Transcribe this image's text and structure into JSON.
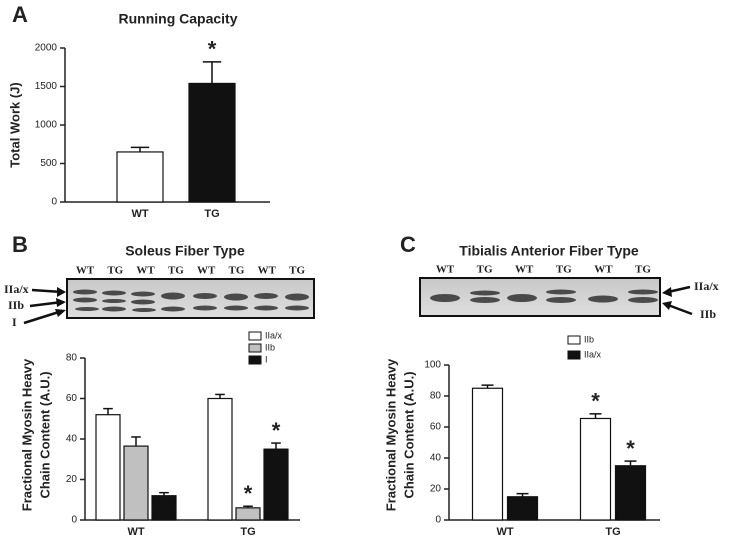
{
  "chart_data": [
    {
      "type": "bar",
      "panel": "A",
      "title": "Running Capacity",
      "ylabel": [
        "Total Work (J)"
      ],
      "categories": [
        "WT",
        "TG"
      ],
      "values": [
        650,
        1540
      ],
      "errors": [
        60,
        280
      ],
      "colors": [
        "#ffffff",
        "#111111"
      ],
      "annotations": [
        null,
        "*"
      ],
      "ylim": [
        0,
        2000
      ],
      "yticks": [
        0,
        500,
        1000,
        1500,
        2000
      ]
    },
    {
      "type": "bar",
      "panel": "B",
      "title": "Soleus Fiber Type",
      "ylabel": [
        "Fractional Myosin Heavy",
        "Chain Content (A.U.)"
      ],
      "blot_lanes": [
        "WT",
        "TG",
        "WT",
        "TG",
        "WT",
        "TG",
        "WT",
        "TG"
      ],
      "band_labels": [
        "IIa/x",
        "IIb",
        "I"
      ],
      "categories": [
        "WT",
        "TG"
      ],
      "series": [
        {
          "name": "IIa/x",
          "color": "#ffffff",
          "values": [
            52,
            60
          ],
          "errors": [
            3,
            2
          ],
          "annotations": [
            null,
            null
          ]
        },
        {
          "name": "IIb",
          "color": "#c0c0c0",
          "values": [
            36.5,
            6
          ],
          "errors": [
            4.5,
            0.8
          ],
          "annotations": [
            null,
            "*"
          ]
        },
        {
          "name": "I",
          "color": "#111111",
          "values": [
            12,
            35
          ],
          "errors": [
            1.5,
            3
          ],
          "annotations": [
            null,
            "*"
          ]
        }
      ],
      "ylim": [
        0,
        80
      ],
      "yticks": [
        0,
        20,
        40,
        60,
        80
      ]
    },
    {
      "type": "bar",
      "panel": "C",
      "title": "Tibialis Anterior Fiber Type",
      "ylabel": [
        "Fractional Myosin Heavy",
        "Chain Content (A.U.)"
      ],
      "blot_lanes": [
        "WT",
        "TG",
        "WT",
        "TG",
        "WT",
        "TG"
      ],
      "band_labels": [
        "IIa/x",
        "IIb"
      ],
      "categories": [
        "WT",
        "TG"
      ],
      "series": [
        {
          "name": "IIb",
          "color": "#ffffff",
          "values": [
            85,
            65.5
          ],
          "errors": [
            2,
            3
          ],
          "annotations": [
            null,
            "*"
          ]
        },
        {
          "name": "IIa/x",
          "color": "#111111",
          "values": [
            15,
            35
          ],
          "errors": [
            2,
            3
          ],
          "annotations": [
            null,
            "*"
          ]
        }
      ],
      "ylim": [
        0,
        100
      ],
      "yticks": [
        0,
        20,
        40,
        60,
        80,
        100
      ]
    }
  ]
}
